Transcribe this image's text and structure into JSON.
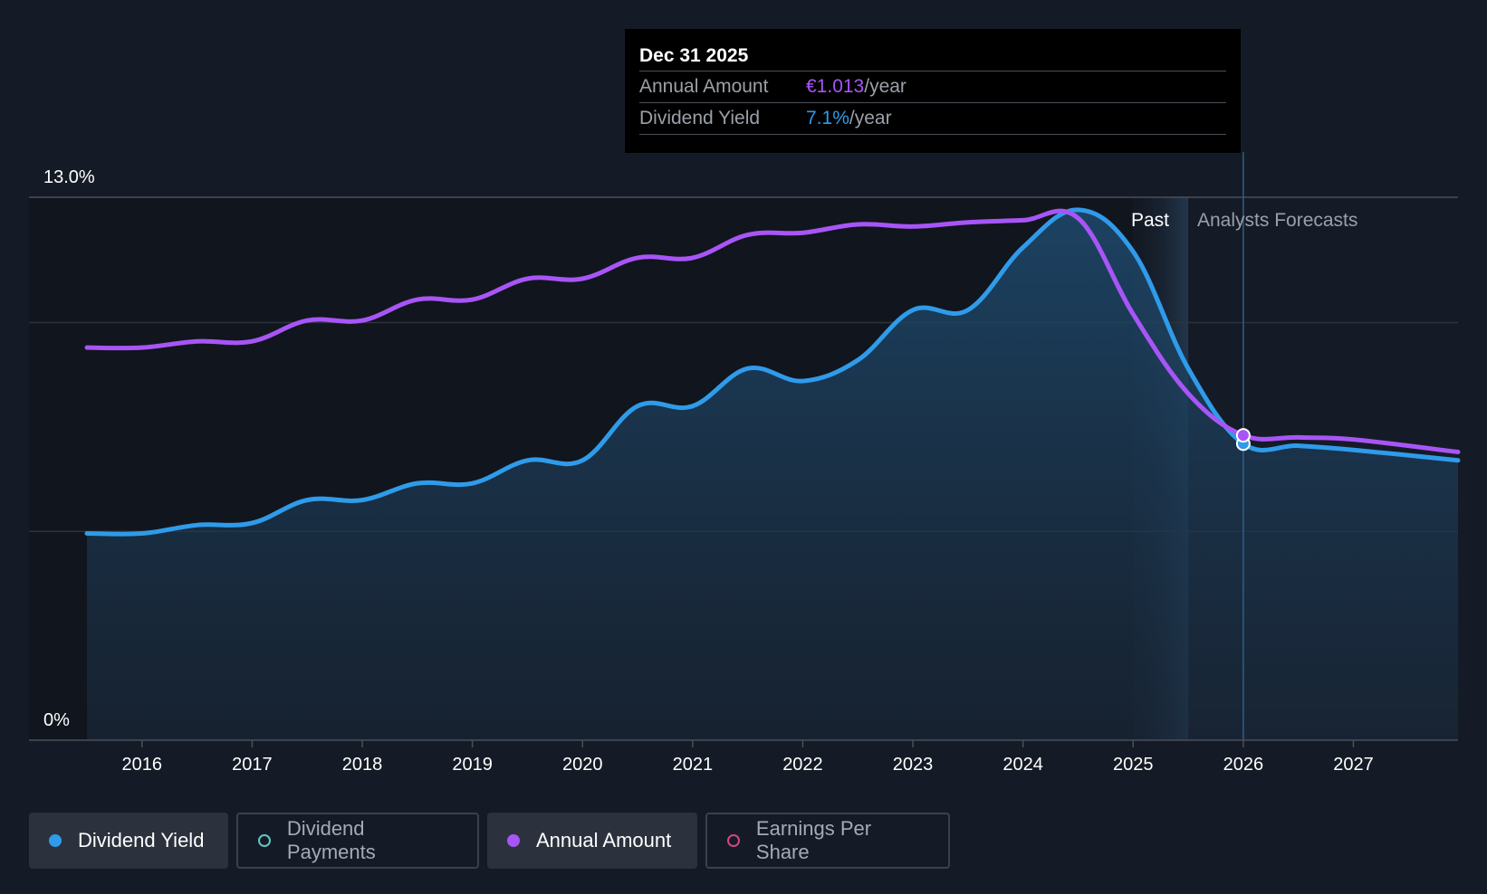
{
  "tooltip": {
    "date": "Dec 31 2025",
    "rows": [
      {
        "key": "Annual Amount",
        "value": "€1.013",
        "unit": "/year",
        "color": "#a855f7"
      },
      {
        "key": "Dividend Yield",
        "value": "7.1%",
        "unit": "/year",
        "color": "#2f9bea"
      }
    ]
  },
  "regions": {
    "past": "Past",
    "forecast": "Analysts Forecasts"
  },
  "legend": [
    {
      "label": "Dividend Yield",
      "active": true,
      "color": "#2f9bea",
      "filled": true
    },
    {
      "label": "Dividend Payments",
      "active": false,
      "color": "#5ec8c0",
      "filled": false
    },
    {
      "label": "Annual Amount",
      "active": true,
      "color": "#a855f7",
      "filled": true
    },
    {
      "label": "Earnings Per Share",
      "active": false,
      "color": "#d4457f",
      "filled": false
    }
  ],
  "chart_data": {
    "type": "line",
    "ylim": [
      0,
      13.0
    ],
    "y_tick_labels": [
      "13.0%",
      "0%"
    ],
    "x_tick_labels": [
      "2016",
      "2017",
      "2018",
      "2019",
      "2020",
      "2021",
      "2022",
      "2023",
      "2024",
      "2025",
      "2026",
      "2027"
    ],
    "xlim": [
      2015.5,
      2027.95
    ],
    "x_ticks": [
      2016,
      2017,
      2018,
      2019,
      2020,
      2021,
      2022,
      2023,
      2024,
      2025,
      2026,
      2027
    ],
    "gridlines": [
      13.0,
      10.0,
      5.0
    ],
    "past_end": 2025.0,
    "forecast_shade_end": 2025.5,
    "cursor_x": 2026.0,
    "series": [
      {
        "name": "Dividend Yield",
        "color": "#2f9bea",
        "points": [
          [
            2015.5,
            4.95
          ],
          [
            2016.0,
            4.95
          ],
          [
            2016.5,
            5.15
          ],
          [
            2017.0,
            5.2
          ],
          [
            2017.5,
            5.75
          ],
          [
            2018.0,
            5.75
          ],
          [
            2018.5,
            6.15
          ],
          [
            2019.0,
            6.15
          ],
          [
            2019.5,
            6.7
          ],
          [
            2020.0,
            6.7
          ],
          [
            2020.5,
            8.0
          ],
          [
            2021.0,
            8.0
          ],
          [
            2021.5,
            8.9
          ],
          [
            2022.0,
            8.6
          ],
          [
            2022.5,
            9.1
          ],
          [
            2023.0,
            10.3
          ],
          [
            2023.5,
            10.3
          ],
          [
            2024.0,
            11.8
          ],
          [
            2024.5,
            12.7
          ],
          [
            2025.0,
            11.7
          ],
          [
            2025.5,
            8.9
          ],
          [
            2026.0,
            7.1
          ],
          [
            2026.5,
            7.05
          ],
          [
            2027.0,
            6.95
          ],
          [
            2027.95,
            6.7
          ]
        ]
      },
      {
        "name": "Annual Amount",
        "color": "#a855f7",
        "points": [
          [
            2015.5,
            9.4
          ],
          [
            2016.0,
            9.4
          ],
          [
            2016.5,
            9.55
          ],
          [
            2017.0,
            9.55
          ],
          [
            2017.5,
            10.05
          ],
          [
            2018.0,
            10.05
          ],
          [
            2018.5,
            10.55
          ],
          [
            2019.0,
            10.55
          ],
          [
            2019.5,
            11.05
          ],
          [
            2020.0,
            11.05
          ],
          [
            2020.5,
            11.55
          ],
          [
            2021.0,
            11.55
          ],
          [
            2021.5,
            12.1
          ],
          [
            2022.0,
            12.15
          ],
          [
            2022.5,
            12.35
          ],
          [
            2023.0,
            12.3
          ],
          [
            2023.5,
            12.4
          ],
          [
            2024.0,
            12.45
          ],
          [
            2024.5,
            12.5
          ],
          [
            2025.0,
            10.2
          ],
          [
            2025.5,
            8.3
          ],
          [
            2026.0,
            7.3
          ],
          [
            2026.5,
            7.25
          ],
          [
            2027.0,
            7.2
          ],
          [
            2027.95,
            6.9
          ]
        ]
      }
    ]
  }
}
